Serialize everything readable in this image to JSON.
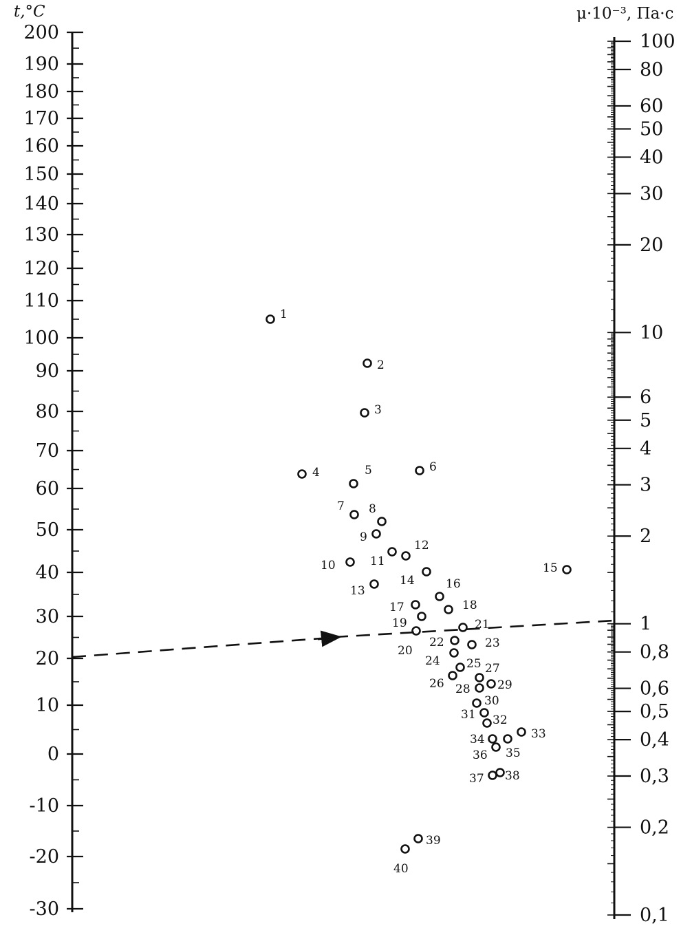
{
  "left_axis": {
    "title_var": "t",
    "title_unit": ",°C",
    "min": -30,
    "max": 200,
    "ticks": [
      "200",
      "190",
      "180",
      "170",
      "160",
      "150",
      "140",
      "130",
      "120",
      "110",
      "100",
      "90",
      "80",
      "70",
      "60",
      "50",
      "40",
      "30",
      "20",
      "10",
      "0",
      "-10",
      "-20",
      "-30"
    ]
  },
  "right_axis": {
    "title": "μ·10⁻³, Па·с",
    "min": 0.1,
    "max": 100,
    "scale": "log",
    "ticks": [
      "100",
      "80",
      "60",
      "50",
      "40",
      "30",
      "20",
      "10",
      "6",
      "5",
      "4",
      "3",
      "2",
      "1",
      "0,8",
      "0,6",
      "0,5",
      "0,4",
      "0,3",
      "0,2",
      "0,1"
    ]
  },
  "points": [
    {
      "label": "1"
    },
    {
      "label": "2"
    },
    {
      "label": "3"
    },
    {
      "label": "4"
    },
    {
      "label": "5"
    },
    {
      "label": "6"
    },
    {
      "label": "7"
    },
    {
      "label": "8"
    },
    {
      "label": "9"
    },
    {
      "label": "10"
    },
    {
      "label": "11"
    },
    {
      "label": "12"
    },
    {
      "label": "13"
    },
    {
      "label": "14"
    },
    {
      "label": "15"
    },
    {
      "label": "16"
    },
    {
      "label": "17"
    },
    {
      "label": "18"
    },
    {
      "label": "19"
    },
    {
      "label": "20"
    },
    {
      "label": "21"
    },
    {
      "label": "22"
    },
    {
      "label": "23"
    },
    {
      "label": "24"
    },
    {
      "label": "25"
    },
    {
      "label": "26"
    },
    {
      "label": "27"
    },
    {
      "label": "28"
    },
    {
      "label": "29"
    },
    {
      "label": "30"
    },
    {
      "label": "31"
    },
    {
      "label": "32"
    },
    {
      "label": "33"
    },
    {
      "label": "34"
    },
    {
      "label": "35"
    },
    {
      "label": "36"
    },
    {
      "label": "37"
    },
    {
      "label": "38"
    },
    {
      "label": "39"
    },
    {
      "label": "40"
    }
  ],
  "guide_line": {
    "from_t": 20,
    "to_mu": 1
  }
}
